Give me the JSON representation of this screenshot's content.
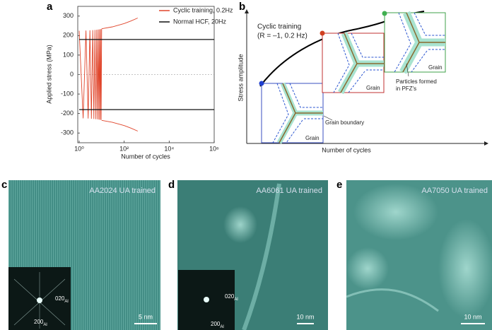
{
  "chart_data": {
    "type": "line",
    "letter": "a",
    "x_label": "Number of cycles",
    "y_label": "Applied stress (MPa)",
    "xlog": true,
    "xlim": [
      1,
      1000000
    ],
    "xticks": [
      {
        "value": 1,
        "label": "10⁰"
      },
      {
        "value": 100,
        "label": "10²"
      },
      {
        "value": 10000,
        "label": "10⁴"
      },
      {
        "value": 1000000,
        "label": "10⁶"
      }
    ],
    "ylim": [
      -350,
      350
    ],
    "yticks": [
      -300,
      -200,
      -100,
      0,
      100,
      200,
      300
    ],
    "legend": "upper right",
    "series": [
      {
        "name": "Cyclic training, 0.2Hz",
        "color": "#e0442a",
        "x": [
          1,
          1.5,
          2,
          2.5,
          3,
          3.5,
          4,
          4.5,
          5,
          5.5,
          6,
          6.5,
          7,
          7.5,
          8,
          8.5,
          9,
          9.5,
          10,
          10,
          10,
          30,
          100,
          200,
          400,
          400,
          10,
          30,
          100,
          200,
          400
        ],
        "values": [
          225,
          -225,
          226,
          -226,
          227,
          -227,
          228,
          -228,
          229,
          -229,
          230,
          -230,
          231,
          -231,
          232,
          -232,
          233,
          -233,
          234,
          null,
          235,
          245,
          262,
          275,
          290,
          null,
          -235,
          -245,
          -262,
          -275,
          -290
        ]
      },
      {
        "name": "Normal HCF, 20Hz",
        "color": "#111111",
        "x": [
          1,
          1000000,
          1000000,
          1,
          1000000
        ],
        "values": [
          180,
          180,
          null,
          -180,
          -180
        ]
      }
    ]
  },
  "diagram": {
    "letter": "b",
    "title": "Cyclic training",
    "subtitle": "(R = –1, 0.2 Hz)",
    "y_label": "Stress amplitude",
    "x_label": "Number of cycles",
    "grain_boundary": "Grain boundary",
    "grain_labels": [
      "Grain",
      "Grain",
      "Grain"
    ],
    "particles": [
      "Particles formed",
      "in PFZ's"
    ]
  },
  "images": [
    {
      "letter": "c",
      "caption": "AA2024 UA trained",
      "scale": "5 nm",
      "inset": [
        {
          "index": "020",
          "sub": "Al"
        },
        {
          "index": "200",
          "sub": "Al"
        }
      ]
    },
    {
      "letter": "d",
      "caption": "AA6061 UA trained",
      "scale": "10 nm",
      "inset": [
        {
          "index": "020",
          "sub": "Al"
        },
        {
          "index": "200",
          "sub": "Al"
        }
      ]
    },
    {
      "letter": "e",
      "caption": "AA7050 UA trained",
      "scale": "10 nm"
    }
  ]
}
